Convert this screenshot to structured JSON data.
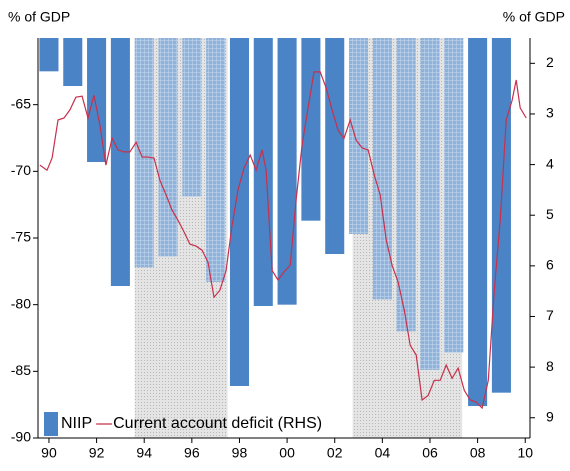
{
  "chart_data": {
    "type": "bar-line",
    "y_axis_label": "% of GDP",
    "y2_axis_label": "% of GDP",
    "xlim": [
      1989.54,
      2010.2
    ],
    "xticks": [
      {
        "value": 1990,
        "label": "90"
      },
      {
        "value": 1992,
        "label": "92"
      },
      {
        "value": 1994,
        "label": "94"
      },
      {
        "value": 1996,
        "label": "96"
      },
      {
        "value": 1998,
        "label": "98"
      },
      {
        "value": 2000,
        "label": "00"
      },
      {
        "value": 2002,
        "label": "02"
      },
      {
        "value": 2004,
        "label": "04"
      },
      {
        "value": 2006,
        "label": "06"
      },
      {
        "value": 2008,
        "label": "08"
      },
      {
        "value": 2010,
        "label": "10"
      }
    ],
    "ylim": [
      -90,
      -60
    ],
    "yticks": [
      -90,
      -85,
      -80,
      -75,
      -70,
      -65
    ],
    "y2lim": [
      9.4,
      1.5
    ],
    "y2ticks": [
      9,
      8,
      7,
      6,
      5,
      4,
      3,
      2
    ],
    "shaded_periods": [
      [
        1993.6,
        1997.5
      ],
      [
        2002.75,
        2007.35
      ]
    ],
    "legend": "lower left",
    "series": [
      {
        "name": "NIIP",
        "color": "#4a84c6",
        "shaded_color": "#8fb2da",
        "x": [
          1990,
          1991,
          1992,
          1993,
          1994,
          1995,
          1996,
          1997,
          1998,
          1999,
          2000,
          2001,
          2002,
          2003,
          2004,
          2005,
          2006,
          2007,
          2008,
          2009
        ],
        "values": [
          -62.5,
          -63.6,
          -69.3,
          -78.6,
          -77.2,
          -76.4,
          -71.9,
          -78.3,
          -86.1,
          -80.1,
          -80.0,
          -73.7,
          -76.2,
          -74.7,
          -79.6,
          -82.0,
          -84.9,
          -83.6,
          -87.6,
          -86.6
        ]
      },
      {
        "name": "Current account deficit (RHS)",
        "color": "#c8304c",
        "axis": "y2",
        "x": [
          1989.62,
          1989.92,
          1990.13,
          1990.38,
          1990.63,
          1990.88,
          1991.13,
          1991.39,
          1991.64,
          1991.89,
          1992.14,
          1992.39,
          1992.65,
          1992.9,
          1993.15,
          1993.4,
          1993.66,
          1993.91,
          1994.16,
          1994.41,
          1994.66,
          1994.92,
          1995.17,
          1995.42,
          1995.67,
          1995.92,
          1996.18,
          1996.43,
          1996.68,
          1996.93,
          1997.18,
          1997.44,
          1997.69,
          1997.94,
          1998.19,
          1998.45,
          1998.7,
          1998.95,
          1999.12,
          1999.37,
          1999.62,
          1999.87,
          2000.13,
          2000.38,
          2000.63,
          2000.88,
          2001.13,
          2001.39,
          2001.64,
          2001.89,
          2002.14,
          2002.39,
          2002.65,
          2002.9,
          2003.15,
          2003.4,
          2003.66,
          2003.91,
          2004.16,
          2004.41,
          2004.66,
          2004.92,
          2005.17,
          2005.42,
          2005.67,
          2005.92,
          2006.18,
          2006.43,
          2006.68,
          2006.93,
          2007.18,
          2007.44,
          2007.69,
          2007.94,
          2008.19,
          2008.45,
          2008.7,
          2008.95,
          2009.2,
          2009.45,
          2009.62,
          2009.79,
          2010.04
        ],
        "values": [
          4.01,
          4.11,
          3.87,
          3.12,
          3.08,
          2.92,
          2.67,
          2.65,
          3.08,
          2.63,
          3.22,
          4.01,
          3.48,
          3.71,
          3.75,
          3.75,
          3.56,
          3.85,
          3.85,
          3.87,
          4.31,
          4.6,
          4.9,
          5.1,
          5.33,
          5.57,
          5.61,
          5.69,
          5.93,
          6.62,
          6.48,
          6.09,
          5.2,
          4.5,
          4.07,
          3.81,
          4.11,
          3.71,
          4.11,
          6.09,
          6.28,
          6.12,
          5.99,
          4.7,
          3.61,
          2.88,
          2.17,
          2.17,
          2.49,
          2.92,
          3.32,
          3.48,
          3.12,
          3.52,
          3.67,
          3.71,
          4.21,
          4.6,
          5.49,
          5.99,
          6.32,
          6.88,
          7.57,
          7.76,
          8.65,
          8.56,
          8.26,
          8.26,
          7.96,
          8.22,
          8.02,
          8.46,
          8.65,
          8.69,
          8.81,
          8.26,
          6.48,
          5.1,
          3.12,
          2.73,
          2.33,
          2.88,
          3.08
        ]
      }
    ]
  }
}
